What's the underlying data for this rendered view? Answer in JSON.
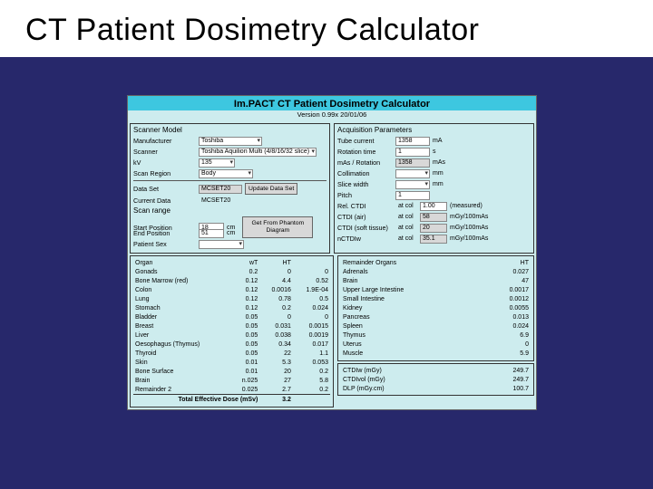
{
  "slide": {
    "title": "CT Patient Dosimetry Calculator"
  },
  "app": {
    "title": "Im.PACT CT Patient Dosimetry Calculator",
    "version": "Version 0.99x 20/01/06"
  },
  "scanner": {
    "section": "Scanner Model",
    "manufacturer_label": "Manufacturer",
    "manufacturer": "Toshiba",
    "scanner_label": "Scanner",
    "scanner": "Toshiba Aquilion Multi (4/8/16/32 slice)",
    "kv_label": "kV",
    "kv": "135",
    "region_label": "Scan Region",
    "region": "Body",
    "dataset_label": "Data Set",
    "dataset": "MCSET20",
    "update_btn": "Update Data Set",
    "current_label": "Current Data",
    "current": "MCSET20",
    "range_title": "Scan range",
    "start_label": "Start Position",
    "start": "18",
    "end_label": "End Position",
    "end": "51",
    "cm": "cm",
    "phantom_btn": "Get From Phantom Diagram",
    "sex_label": "Patient Sex",
    "sex": " "
  },
  "acq": {
    "section": "Acquisition Parameters",
    "tube_label": "Tube current",
    "tube": "1358",
    "tube_unit": "mA",
    "rot_label": "Rotation time",
    "rot": "1",
    "rot_unit": "s",
    "mas_label": "mAs / Rotation",
    "mas": "1358",
    "mas_unit": "mAs",
    "coll_label": "Collimation",
    "coll": "",
    "coll_unit": "mm",
    "slice_label": "Slice width",
    "slice": "",
    "slice_unit": "mm",
    "pitch_label": "Pitch",
    "pitch": "1",
    "relctdi_label": "Rel. CTDI",
    "relctdi_at": "at col",
    "relctdi": "1.00",
    "relctdi_unit": "(measured)",
    "ctdiair_label": "CTDI (air)",
    "ctdiair_at": "at col",
    "ctdiair": "58",
    "ctdiair_unit": "mGy/100mAs",
    "ctdist_label": "CTDI (soft tissue)",
    "ctdist_at": "at col",
    "ctdist": "20",
    "ctdist_unit": "mGy/100mAs",
    "nctdiw_label": "nCTDIw",
    "nctdiw_at": "at col",
    "nctdiw": "35.1",
    "nctdiw_unit": "mGy/100mAs"
  },
  "organs": {
    "h_organ": "Organ",
    "h_wt": "wT",
    "h_ht": "HT",
    "rows": [
      {
        "o": "Gonads",
        "w": "0.2",
        "h": "0"
      },
      {
        "o": "Bone Marrow (red)",
        "w": "0.12",
        "h": "4.4"
      },
      {
        "o": "Colon",
        "w": "0.12",
        "h": "0.0016"
      },
      {
        "o": "Lung",
        "w": "0.12",
        "h": "0.78"
      },
      {
        "o": "Stomach",
        "w": "0.12",
        "h": "0.2"
      },
      {
        "o": "Bladder",
        "w": "0.05",
        "h": "0"
      },
      {
        "o": "Breast",
        "w": "0.05",
        "h": "0.031"
      },
      {
        "o": "Liver",
        "w": "0.05",
        "h": "0.038"
      },
      {
        "o": "Oesophagus (Thymus)",
        "w": "0.05",
        "h": "0.34"
      },
      {
        "o": "Thyroid",
        "w": "0.05",
        "h": "22"
      },
      {
        "o": "Skin",
        "w": "0.01",
        "h": "5.3"
      },
      {
        "o": "Bone Surface",
        "w": "0.01",
        "h": "20"
      },
      {
        "o": "Brain",
        "w": "n.025",
        "h": "27"
      },
      {
        "o": "Remainder 2",
        "w": "0.025",
        "h": "2.7"
      }
    ],
    "w_col3": [
      "0",
      "0.52",
      "1.9E-04",
      "0.5",
      "0.024",
      "0",
      "0.0015",
      "0.0019",
      "0.017",
      "1.1",
      "0.053",
      "0.2",
      "5.8",
      "0.2"
    ],
    "total_label": "Total Effective Dose (mSv)",
    "total": "3.2"
  },
  "remainder": {
    "h_title": "Remainder Organs",
    "h_ht": "HT",
    "rows": [
      {
        "o": "Adrenals",
        "h": "0.027"
      },
      {
        "o": "Brain",
        "h": "47"
      },
      {
        "o": "Upper Large Intestine",
        "h": "0.0017"
      },
      {
        "o": "Small Intestine",
        "h": "0.0012"
      },
      {
        "o": "Kidney",
        "h": "0.0055"
      },
      {
        "o": "Pancreas",
        "h": "0.013"
      },
      {
        "o": "Spleen",
        "h": "0.024"
      },
      {
        "o": "Thymus",
        "h": "6.9"
      },
      {
        "o": "Uterus",
        "h": "0"
      },
      {
        "o": "Muscle",
        "h": "5.9"
      }
    ]
  },
  "summary": {
    "rows": [
      {
        "l": "CTDIw (mGy)",
        "v": "249.7"
      },
      {
        "l": "CTDIvol (mGy)",
        "v": "249.7"
      },
      {
        "l": "DLP (mGy.cm)",
        "v": "100.7"
      }
    ]
  },
  "colors": {
    "slide_bg": "#27286b",
    "app_bg": "#cdecee",
    "header_bg": "#3dc7e0"
  }
}
